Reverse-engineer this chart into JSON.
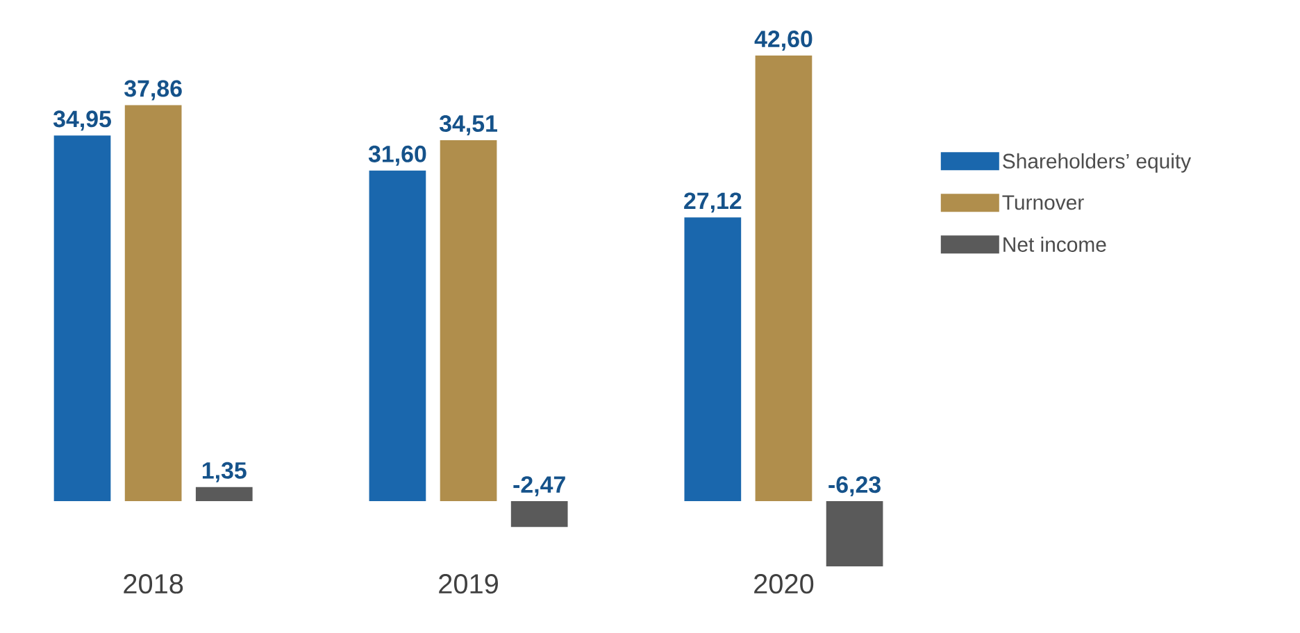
{
  "chart_data": {
    "type": "bar",
    "categories": [
      "2018",
      "2019",
      "2020"
    ],
    "series": [
      {
        "name": "Shareholders’ equity",
        "color": "#1a67ad",
        "values": [
          34.95,
          31.6,
          27.12
        ],
        "value_labels": [
          "34,95",
          "31,60",
          "27,12"
        ]
      },
      {
        "name": "Turnover",
        "color": "#b08e4c",
        "values": [
          37.86,
          34.51,
          42.6
        ],
        "value_labels": [
          "37,86",
          "34,51",
          "42,60"
        ]
      },
      {
        "name": "Net income",
        "color": "#5a5a5a",
        "values": [
          1.35,
          -2.47,
          -6.23
        ],
        "value_labels": [
          "1,35",
          "-2,47",
          "-6,23"
        ]
      }
    ],
    "tick_labels": "x",
    "legend": "right"
  }
}
